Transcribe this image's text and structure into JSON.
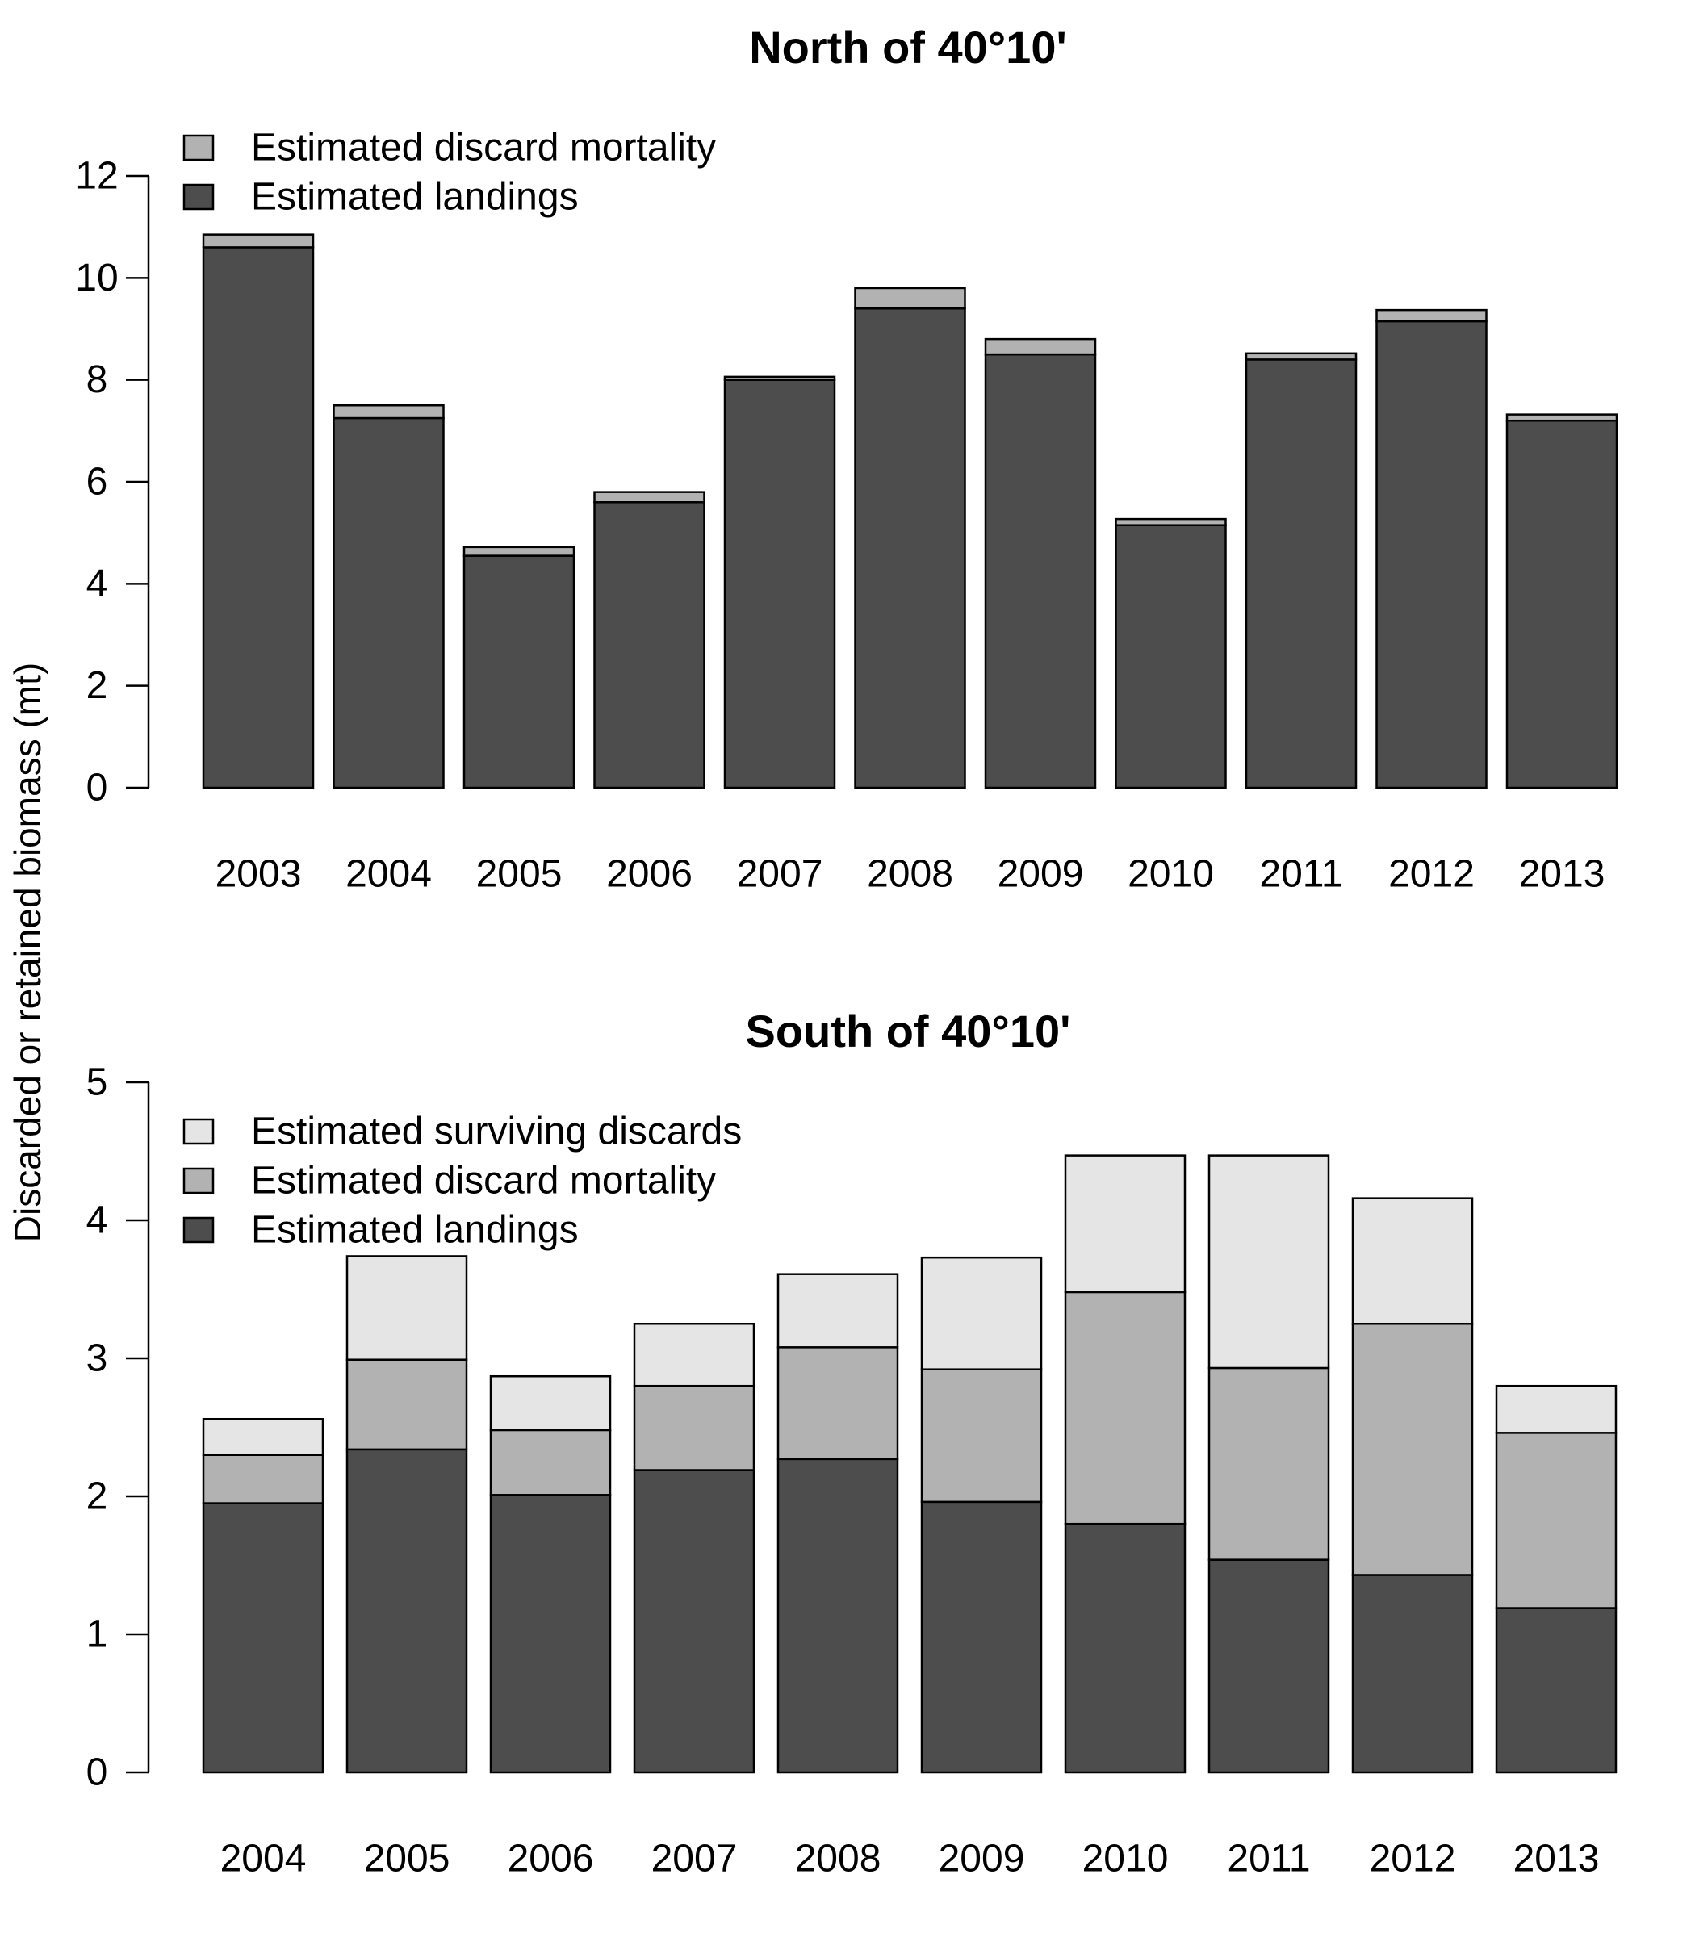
{
  "figure": {
    "ylabel": "Discarded or retained biomass (mt)"
  },
  "colors": {
    "landings": "#4d4d4d",
    "mortality": "#b2b2b2",
    "surviving": "#e5e5e5"
  },
  "chart_data": [
    {
      "type": "bar",
      "stacked": true,
      "title": "North of 40°10'",
      "categories": [
        "2003",
        "2004",
        "2005",
        "2006",
        "2007",
        "2008",
        "2009",
        "2010",
        "2011",
        "2012",
        "2013"
      ],
      "series": [
        {
          "name": "Estimated landings",
          "color_key": "landings",
          "values": [
            10.6,
            7.25,
            4.55,
            5.6,
            8.0,
            9.4,
            8.5,
            5.15,
            8.4,
            9.15,
            7.2
          ]
        },
        {
          "name": "Estimated discard mortality",
          "color_key": "mortality",
          "values": [
            0.25,
            0.25,
            0.17,
            0.2,
            0.06,
            0.4,
            0.3,
            0.12,
            0.12,
            0.22,
            0.12
          ]
        }
      ],
      "legend_order": [
        "Estimated discard mortality",
        "Estimated landings"
      ],
      "legend_position": "top-left",
      "ylim": [
        0,
        12
      ],
      "yticks": [
        0,
        2,
        4,
        6,
        8,
        10,
        12
      ]
    },
    {
      "type": "bar",
      "stacked": true,
      "title": "South of 40°10'",
      "categories": [
        "2004",
        "2005",
        "2006",
        "2007",
        "2008",
        "2009",
        "2010",
        "2011",
        "2012",
        "2013"
      ],
      "series": [
        {
          "name": "Estimated landings",
          "color_key": "landings",
          "values": [
            1.95,
            2.34,
            2.01,
            2.19,
            2.27,
            1.96,
            1.8,
            1.54,
            1.43,
            1.19
          ]
        },
        {
          "name": "Estimated discard mortality",
          "color_key": "mortality",
          "values": [
            0.35,
            0.65,
            0.47,
            0.61,
            0.81,
            0.96,
            1.68,
            1.39,
            1.82,
            1.27
          ]
        },
        {
          "name": "Estimated surviving discards",
          "color_key": "surviving",
          "values": [
            0.26,
            0.75,
            0.39,
            0.45,
            0.53,
            0.81,
            0.99,
            1.54,
            0.91,
            0.34
          ]
        }
      ],
      "legend_order": [
        "Estimated surviving discards",
        "Estimated discard mortality",
        "Estimated landings"
      ],
      "legend_position": "top-left",
      "ylim": [
        0,
        5
      ],
      "yticks": [
        0,
        1,
        2,
        3,
        4,
        5
      ]
    }
  ]
}
